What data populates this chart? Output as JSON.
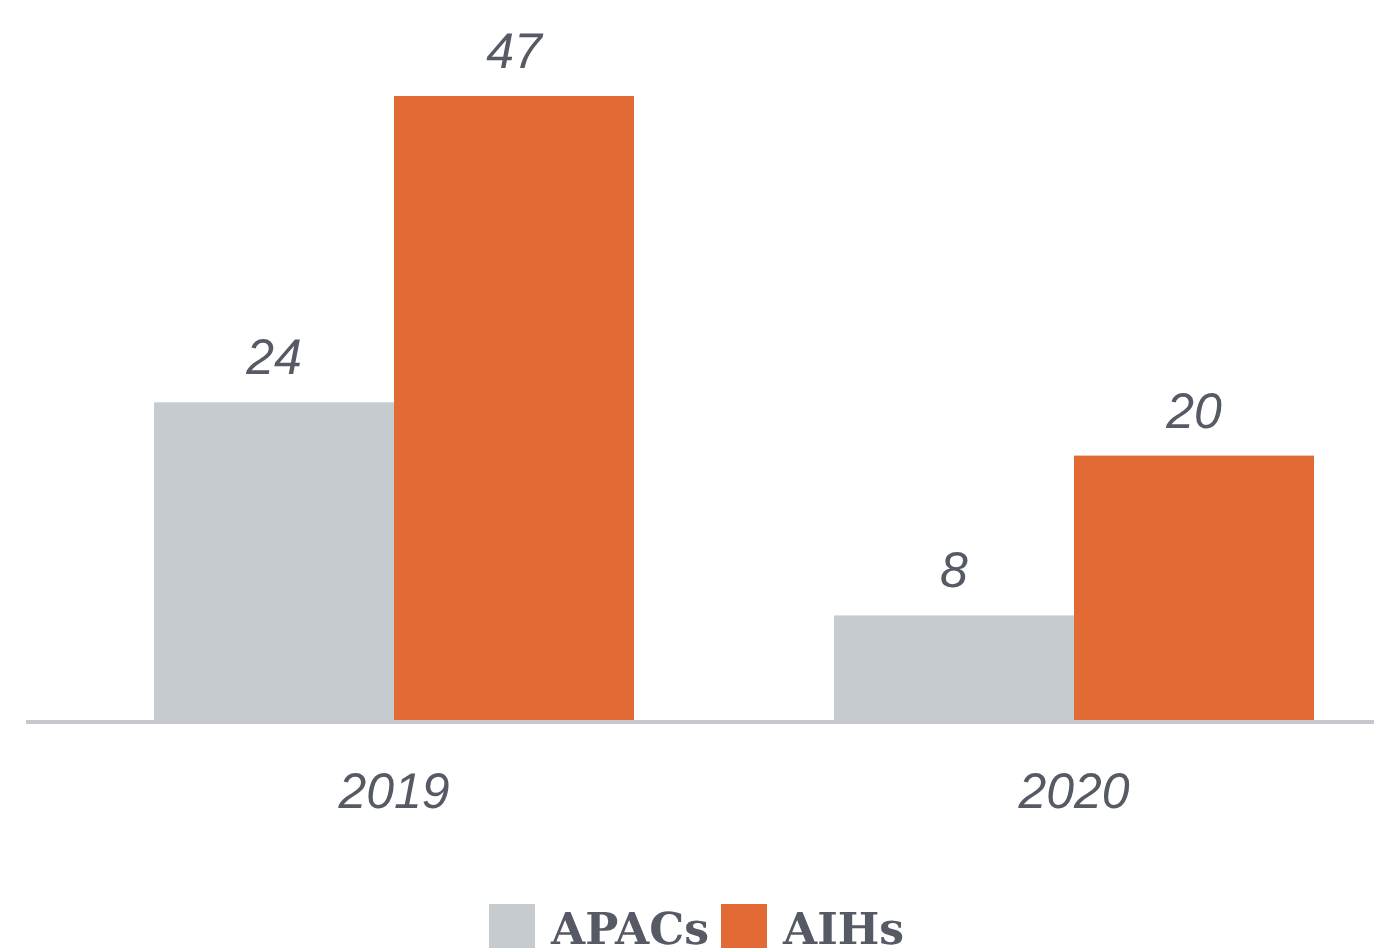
{
  "chart_data": {
    "type": "bar",
    "categories": [
      "2019",
      "2020"
    ],
    "series": [
      {
        "name": "APACs",
        "color": "#c5cbce",
        "values": [
          24,
          8
        ]
      },
      {
        "name": "AIHs",
        "color": "#e26a35",
        "values": [
          47,
          20
        ]
      }
    ],
    "data_labels": true,
    "legend": "bottom"
  }
}
